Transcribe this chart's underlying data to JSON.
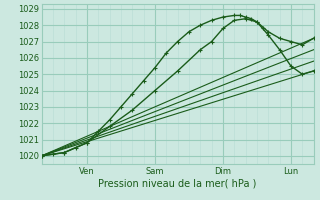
{
  "title": "",
  "xlabel": "Pression niveau de la mer( hPa )",
  "ylabel": "",
  "bg_color": "#cce8e0",
  "grid_major_color": "#99ccbb",
  "grid_minor_color": "#b8ddd5",
  "line_color": "#1a5c1a",
  "ylim": [
    1019.5,
    1029.3
  ],
  "xlim": [
    0,
    96
  ],
  "x_ticks": [
    16,
    40,
    64,
    88
  ],
  "x_tick_labels": [
    "Ven",
    "Sam",
    "Dim",
    "Lun"
  ],
  "y_ticks": [
    1020,
    1021,
    1022,
    1023,
    1024,
    1025,
    1026,
    1027,
    1028,
    1029
  ],
  "lines": [
    {
      "x": [
        0,
        4,
        8,
        12,
        16,
        20,
        24,
        28,
        32,
        36,
        40,
        44,
        48,
        52,
        56,
        60,
        64,
        68,
        70,
        72,
        74,
        76,
        78,
        80,
        84,
        88,
        92,
        96
      ],
      "y": [
        1020.0,
        1020.1,
        1020.2,
        1020.5,
        1020.8,
        1021.5,
        1022.2,
        1023.0,
        1023.8,
        1024.6,
        1025.4,
        1026.3,
        1027.0,
        1027.6,
        1028.0,
        1028.3,
        1028.5,
        1028.6,
        1028.6,
        1028.5,
        1028.4,
        1028.2,
        1027.8,
        1027.4,
        1026.5,
        1025.5,
        1025.0,
        1025.2
      ],
      "marker": "+",
      "lw": 1.0
    },
    {
      "x": [
        0,
        8,
        16,
        24,
        32,
        40,
        48,
        56,
        60,
        64,
        68,
        72,
        76,
        80,
        84,
        88,
        92,
        96
      ],
      "y": [
        1020.0,
        1020.2,
        1020.8,
        1021.8,
        1022.8,
        1024.0,
        1025.2,
        1026.5,
        1027.0,
        1027.8,
        1028.3,
        1028.4,
        1028.2,
        1027.6,
        1027.2,
        1027.0,
        1026.8,
        1027.2
      ],
      "marker": "+",
      "lw": 1.0
    },
    {
      "x": [
        0,
        96
      ],
      "y": [
        1020.0,
        1027.2
      ],
      "marker": null,
      "lw": 0.8
    },
    {
      "x": [
        0,
        96
      ],
      "y": [
        1020.0,
        1026.5
      ],
      "marker": null,
      "lw": 0.8
    },
    {
      "x": [
        0,
        96
      ],
      "y": [
        1020.0,
        1025.8
      ],
      "marker": null,
      "lw": 0.8
    },
    {
      "x": [
        0,
        96
      ],
      "y": [
        1020.0,
        1025.2
      ],
      "marker": null,
      "lw": 0.8
    }
  ]
}
